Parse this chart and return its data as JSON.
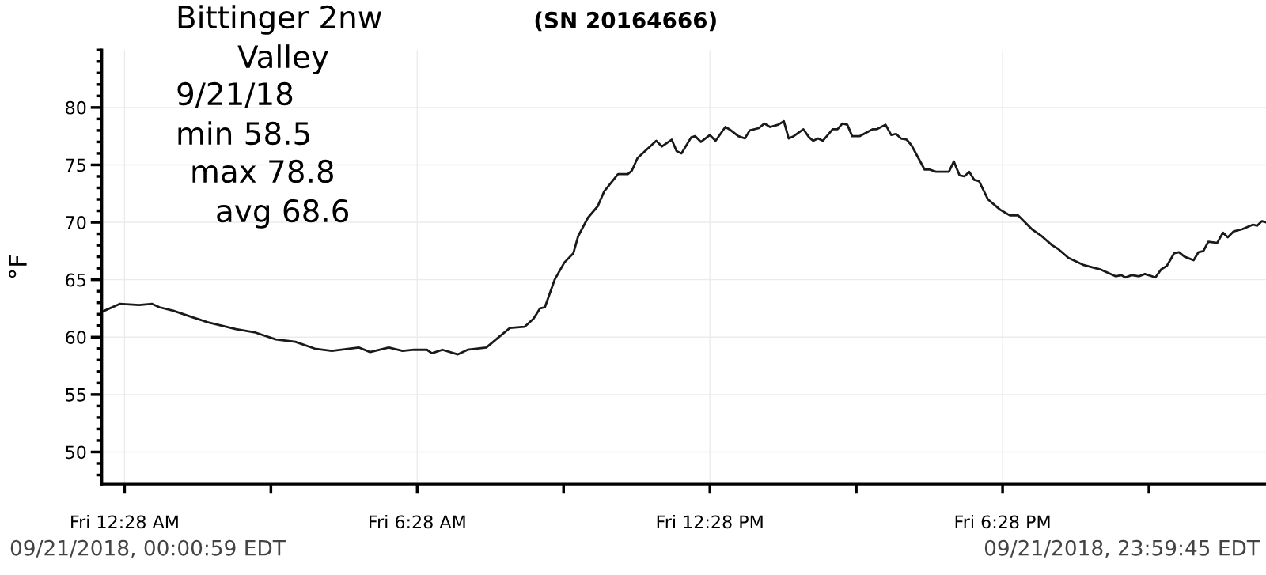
{
  "chart_data": {
    "type": "line",
    "title": "(SN 20164666)",
    "ylabel": "°F",
    "annotations": [
      "Bittinger 2nw",
      "Valley",
      "9/21/18",
      "min 58.5",
      "max 78.8",
      "avg 68.6",
      "09/21/2018, 00:00:59 EDT",
      "09/21/2018, 23:59:45 EDT"
    ],
    "xlim": [
      "2018-09-21T00:00",
      "2018-09-21T23:52"
    ],
    "ylim": [
      47.2,
      85
    ],
    "xticks": [
      {
        "value": "2018-09-21T00:28",
        "label": "Fri 12:28 AM"
      },
      {
        "value": "2018-09-21T03:28",
        "label": null
      },
      {
        "value": "2018-09-21T06:28",
        "label": "Fri 6:28 AM"
      },
      {
        "value": "2018-09-21T09:28",
        "label": null
      },
      {
        "value": "2018-09-21T12:28",
        "label": "Fri 12:28 PM"
      },
      {
        "value": "2018-09-21T15:28",
        "label": null
      },
      {
        "value": "2018-09-21T18:28",
        "label": "Fri 6:28 PM"
      },
      {
        "value": "2018-09-21T21:28",
        "label": null
      }
    ],
    "yticks": [
      50,
      55,
      60,
      65,
      70,
      75,
      80
    ],
    "grid": true,
    "legend": false,
    "marker": "none",
    "line_style": "solid",
    "series": [
      {
        "color": "#1a1a1a",
        "x": [
          "2018-09-21T00:00",
          "2018-09-21T00:22",
          "2018-09-21T00:46",
          "2018-09-21T01:02",
          "2018-09-21T01:11",
          "2018-09-21T01:28",
          "2018-09-21T01:53",
          "2018-09-21T02:10",
          "2018-09-21T02:45",
          "2018-09-21T03:09",
          "2018-09-21T03:34",
          "2018-09-21T03:58",
          "2018-09-21T04:22",
          "2018-09-21T04:43",
          "2018-09-21T05:16",
          "2018-09-21T05:30",
          "2018-09-21T05:53",
          "2018-09-21T06:10",
          "2018-09-21T06:24",
          "2018-09-21T06:40",
          "2018-09-21T06:46",
          "2018-09-21T06:59",
          "2018-09-21T07:18",
          "2018-09-21T07:30",
          "2018-09-21T07:53",
          "2018-09-21T08:05",
          "2018-09-21T08:22",
          "2018-09-21T08:40",
          "2018-09-21T08:51",
          "2018-09-21T08:59",
          "2018-09-21T09:05",
          "2018-09-21T09:17",
          "2018-09-21T09:29",
          "2018-09-21T09:40",
          "2018-09-21T09:46",
          "2018-09-21T09:58",
          "2018-09-21T10:10",
          "2018-09-21T10:18",
          "2018-09-21T10:35",
          "2018-09-21T10:47",
          "2018-09-21T10:52",
          "2018-09-21T10:59",
          "2018-09-21T11:22",
          "2018-09-21T11:29",
          "2018-09-21T11:41",
          "2018-09-21T11:47",
          "2018-09-21T11:53",
          "2018-09-21T12:05",
          "2018-09-21T12:10",
          "2018-09-21T12:17",
          "2018-09-21T12:28",
          "2018-09-21T12:35",
          "2018-09-21T12:47",
          "2018-09-21T12:52",
          "2018-09-21T13:03",
          "2018-09-21T13:11",
          "2018-09-21T13:17",
          "2018-09-21T13:28",
          "2018-09-21T13:35",
          "2018-09-21T13:42",
          "2018-09-21T13:52",
          "2018-09-21T13:59",
          "2018-09-21T14:05",
          "2018-09-21T14:11",
          "2018-09-21T14:23",
          "2018-09-21T14:30",
          "2018-09-21T14:35",
          "2018-09-21T14:41",
          "2018-09-21T14:47",
          "2018-09-21T14:59",
          "2018-09-21T15:05",
          "2018-09-21T15:11",
          "2018-09-21T15:17",
          "2018-09-21T15:23",
          "2018-09-21T15:32",
          "2018-09-21T15:48",
          "2018-09-21T15:53",
          "2018-09-21T16:04",
          "2018-09-21T16:11",
          "2018-09-21T16:17",
          "2018-09-21T16:23",
          "2018-09-21T16:30",
          "2018-09-21T16:36",
          "2018-09-21T16:52",
          "2018-09-21T16:58",
          "2018-09-21T17:06",
          "2018-09-21T17:22",
          "2018-09-21T17:28",
          "2018-09-21T17:35",
          "2018-09-21T17:41",
          "2018-09-21T17:47",
          "2018-09-21T17:53",
          "2018-09-21T17:59",
          "2018-09-21T18:10",
          "2018-09-21T18:25",
          "2018-09-21T18:37",
          "2018-09-21T18:47",
          "2018-09-21T19:04",
          "2018-09-21T19:16",
          "2018-09-21T19:29",
          "2018-09-21T19:36",
          "2018-09-21T19:49",
          "2018-09-21T20:07",
          "2018-09-21T20:28",
          "2018-09-21T20:47",
          "2018-09-21T20:54",
          "2018-09-21T20:59",
          "2018-09-21T21:07",
          "2018-09-21T21:16",
          "2018-09-21T21:23",
          "2018-09-21T21:36",
          "2018-09-21T21:43",
          "2018-09-21T21:50",
          "2018-09-21T21:59",
          "2018-09-21T22:05",
          "2018-09-21T22:12",
          "2018-09-21T22:23",
          "2018-09-21T22:29",
          "2018-09-21T22:35",
          "2018-09-21T22:41",
          "2018-09-21T22:52",
          "2018-09-21T22:59",
          "2018-09-21T23:05",
          "2018-09-21T23:12",
          "2018-09-21T23:23",
          "2018-09-21T23:36",
          "2018-09-21T23:41",
          "2018-09-21T23:47",
          "2018-09-21T23:52"
        ],
        "values": [
          62.2,
          62.9,
          62.8,
          62.9,
          62.6,
          62.3,
          61.7,
          61.3,
          60.7,
          60.4,
          59.8,
          59.6,
          59.0,
          58.8,
          59.1,
          58.7,
          59.1,
          58.8,
          58.9,
          58.9,
          58.6,
          58.9,
          58.5,
          58.9,
          59.1,
          59.8,
          60.8,
          60.9,
          61.6,
          62.5,
          62.6,
          65.0,
          66.5,
          67.3,
          68.8,
          70.4,
          71.4,
          72.7,
          74.2,
          74.2,
          74.5,
          75.6,
          77.1,
          76.6,
          77.2,
          76.2,
          76.0,
          77.4,
          77.5,
          77.0,
          77.6,
          77.1,
          78.3,
          78.1,
          77.5,
          77.3,
          78.0,
          78.2,
          78.6,
          78.3,
          78.5,
          78.8,
          77.3,
          77.5,
          78.1,
          77.4,
          77.1,
          77.3,
          77.1,
          78.1,
          78.1,
          78.6,
          78.5,
          77.5,
          77.5,
          78.1,
          78.1,
          78.5,
          77.6,
          77.7,
          77.3,
          77.2,
          76.7,
          74.6,
          74.6,
          74.4,
          74.4,
          75.3,
          74.1,
          74.0,
          74.4,
          73.7,
          73.6,
          72.0,
          71.1,
          70.6,
          70.6,
          69.4,
          68.8,
          68.0,
          67.7,
          66.9,
          66.3,
          65.9,
          65.3,
          65.4,
          65.2,
          65.4,
          65.3,
          65.5,
          65.2,
          65.9,
          66.2,
          67.3,
          67.4,
          67.0,
          66.7,
          67.4,
          67.5,
          68.3,
          68.2,
          69.1,
          68.7,
          69.2,
          69.4,
          69.8,
          69.7,
          70.1,
          70.0
        ]
      }
    ]
  }
}
